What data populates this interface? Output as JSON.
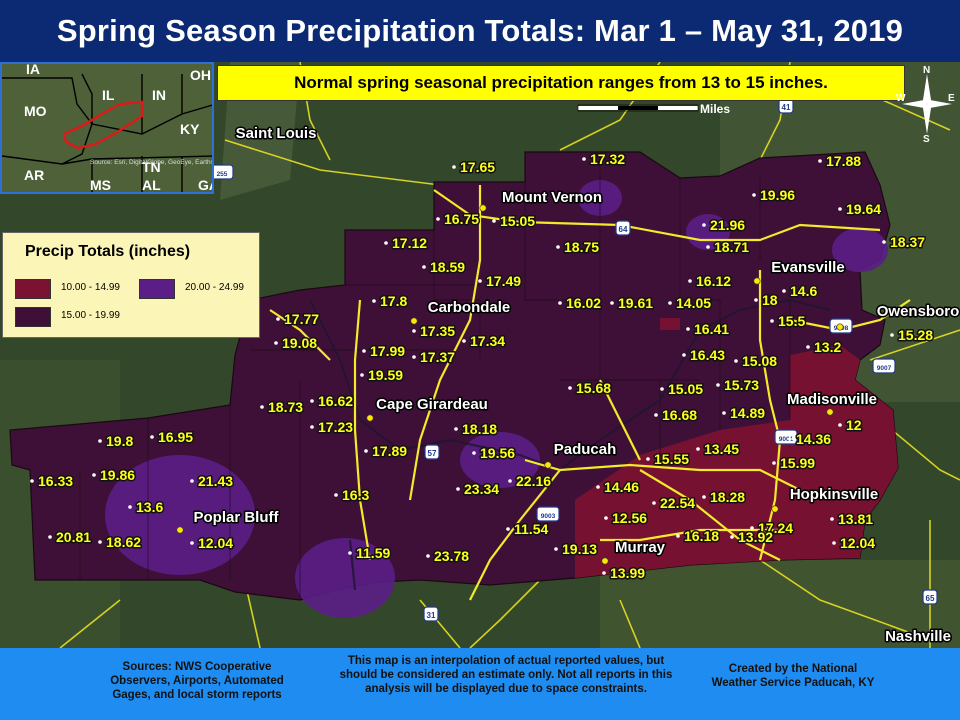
{
  "title": "Spring Season Precipitation Totals: Mar 1 – May 31, 2019",
  "note": "Normal spring seasonal precipitation ranges from 13 to 15 inches.",
  "scale_label": "Miles",
  "compass": {
    "n": "N",
    "s": "S",
    "e": "E",
    "w": "W"
  },
  "legend": {
    "title": "Precip Totals (inches)",
    "items": [
      {
        "label": "10.00 - 14.99",
        "color": "#7a1232"
      },
      {
        "label": "20.00 - 24.99",
        "color": "#5a1e86"
      },
      {
        "label": "15.00 - 19.99",
        "color": "#3e1038"
      }
    ]
  },
  "inset": {
    "states": [
      "IA",
      "IL",
      "IN",
      "OH",
      "MO",
      "KY",
      "AR",
      "TN",
      "MS",
      "AL",
      "GA"
    ],
    "credit": "Source: Esri, DigitalGlobe, GeoEye, Earthstar Geographics, CNES/Airbus DS"
  },
  "cities": [
    {
      "name": "Saint Louis"
    },
    {
      "name": "Mount Vernon"
    },
    {
      "name": "Evansville"
    },
    {
      "name": "Carbondale"
    },
    {
      "name": "Owensboro"
    },
    {
      "name": "Cape Girardeau"
    },
    {
      "name": "Madisonville"
    },
    {
      "name": "Paducah"
    },
    {
      "name": "Hopkinsville"
    },
    {
      "name": "Poplar Bluff"
    },
    {
      "name": "Murray"
    },
    {
      "name": "Nashville"
    }
  ],
  "values": [
    "17.65",
    "17.32",
    "17.88",
    "16.75",
    "15.05",
    "19.96",
    "19.64",
    "21.96",
    "18.71",
    "18.37",
    "17.12",
    "18.75",
    "18.59",
    "17.49",
    "16.12",
    "14.6",
    "17.8",
    "16.02",
    "19.61",
    "14.05",
    "18",
    "15.5",
    "15.28",
    "17.77",
    "17.35",
    "16.41",
    "13.2",
    "19.08",
    "17.99",
    "17.34",
    "16.43",
    "15.08",
    "17.37",
    "19.59",
    "15.68",
    "15.05",
    "15.73",
    "18.73",
    "16.62",
    "16.68",
    "14.89",
    "17.23",
    "18.18",
    "14.36",
    "12",
    "19.8",
    "16.95",
    "17.89",
    "19.56",
    "13.45",
    "15.99",
    "16.33",
    "19.86",
    "21.43",
    "22.16",
    "15.55",
    "16.3",
    "23.34",
    "14.46",
    "18.28",
    "13.6",
    "22.54",
    "12.56",
    "13.81",
    "11.54",
    "17.24",
    "12.04",
    "20.81",
    "18.62",
    "16.18",
    "13.92",
    "12.04",
    "11.59",
    "23.78",
    "19.13",
    "13.99",
    "14.36"
  ],
  "shields": [
    "255",
    "64",
    "41",
    "57",
    "9003",
    "9007",
    "9008",
    "9001",
    "31",
    "65"
  ],
  "footer": {
    "sources": "Sources: NWS Cooperative Observers, Airports, Automated Gages, and local storm reports",
    "disclaimer": "This map is an interpolation of actual reported values, but should be considered an estimate only. Not all reports in this analysis will be displayed due to space constraints.",
    "credit": "Created by the National Weather Service Paducah, KY"
  }
}
